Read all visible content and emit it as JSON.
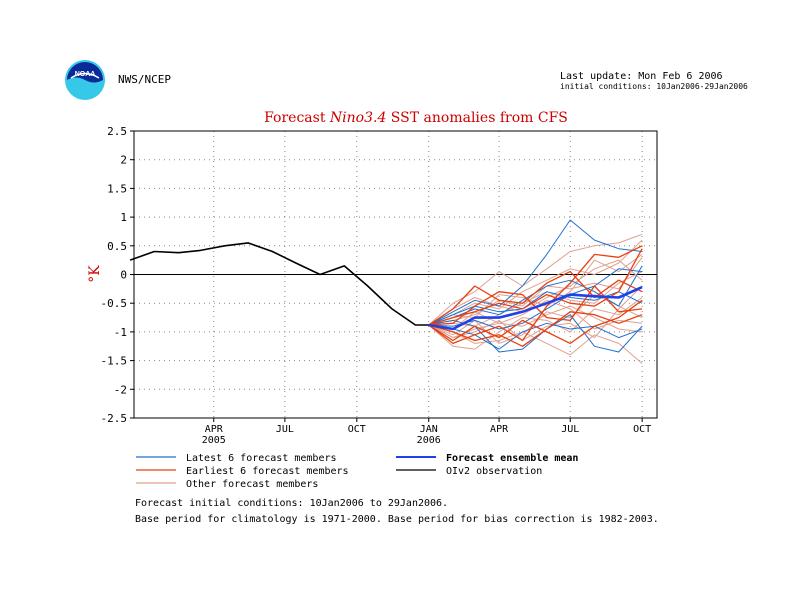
{
  "header": {
    "logo_text": "NOAA",
    "agency": "NWS/NCEP",
    "last_update": "Last update: Mon Feb 6 2006",
    "initial_conditions": "initial conditions: 10Jan2006-29Jan2006"
  },
  "notes": {
    "line1": "Forecast initial conditions: 10Jan2006 to 29Jan2006.",
    "line2": "Base period for climatology is 1971-2000. Base period for bias correction is 1982-2003."
  },
  "colors": {
    "title": "#cc0000",
    "latest": "#1f6fd0",
    "earliest": "#e84010",
    "other": "#e0a090",
    "mean": "#2040e8",
    "observation": "#000000",
    "grid": "#888888"
  },
  "chart_data": {
    "type": "line",
    "title_parts": [
      "Forecast ",
      "Nino3.4",
      " SST anomalies from CFS"
    ],
    "ylabel": "°K",
    "ylim": [
      -2.5,
      2.5
    ],
    "yticks": [
      "2.5",
      "2",
      "1.5",
      "1",
      "0.5",
      "0",
      "-0.5",
      "-1",
      "-1.5",
      "-2",
      "-2.5"
    ],
    "xlim": [
      "2004-12-20",
      "2006-10-20"
    ],
    "xticks": [
      {
        "date": "2005-04-01",
        "label": "APR",
        "sub": "2005"
      },
      {
        "date": "2005-07-01",
        "label": "JUL",
        "sub": ""
      },
      {
        "date": "2005-10-01",
        "label": "OCT",
        "sub": ""
      },
      {
        "date": "2006-01-01",
        "label": "JAN",
        "sub": "2006"
      },
      {
        "date": "2006-04-01",
        "label": "APR",
        "sub": ""
      },
      {
        "date": "2006-07-01",
        "label": "JUL",
        "sub": ""
      },
      {
        "date": "2006-10-01",
        "label": "OCT",
        "sub": ""
      }
    ],
    "grid": true,
    "zero_line": true,
    "legend": [
      {
        "label": "Latest 6 forecast members",
        "series": "latest",
        "bold": false
      },
      {
        "label": "Forecast ensemble mean",
        "series": "mean",
        "bold": true
      },
      {
        "label": "Earliest 6 forecast members",
        "series": "earliest",
        "bold": false
      },
      {
        "label": "OIv2 observation",
        "series": "observation",
        "bold": false
      },
      {
        "label": "Other forecast members",
        "series": "other",
        "bold": false
      }
    ],
    "forecast_months": [
      "2006-01-01",
      "2006-02-01",
      "2006-03-01",
      "2006-04-01",
      "2006-05-01",
      "2006-06-01",
      "2006-07-01",
      "2006-08-01",
      "2006-09-01",
      "2006-10-01"
    ],
    "observation": {
      "x": [
        "2004-12-15",
        "2005-01-15",
        "2005-02-15",
        "2005-03-15",
        "2005-04-15",
        "2005-05-15",
        "2005-06-15",
        "2005-07-15",
        "2005-08-15",
        "2005-09-15",
        "2005-10-15",
        "2005-11-15",
        "2005-12-15",
        "2006-01-01"
      ],
      "y": [
        0.25,
        0.4,
        0.38,
        0.42,
        0.5,
        0.55,
        0.4,
        0.2,
        0.0,
        0.15,
        -0.2,
        -0.6,
        -0.88,
        -0.88
      ]
    },
    "mean": [
      -0.88,
      -0.95,
      -0.75,
      -0.75,
      -0.65,
      -0.5,
      -0.35,
      -0.38,
      -0.4,
      -0.22
    ],
    "latest": [
      [
        -0.88,
        -0.65,
        -0.45,
        -0.55,
        -0.2,
        0.35,
        0.95,
        0.6,
        0.45,
        0.4
      ],
      [
        -0.88,
        -0.8,
        -0.9,
        -1.35,
        -1.3,
        -0.95,
        -0.7,
        -1.25,
        -1.35,
        -0.9
      ],
      [
        -0.88,
        -0.75,
        -0.6,
        -0.7,
        -0.45,
        -0.2,
        -0.1,
        -0.3,
        -0.55,
        0.15
      ],
      [
        -0.88,
        -0.95,
        -1.05,
        -1.3,
        -1.0,
        -0.85,
        -0.95,
        -0.9,
        -1.1,
        -0.95
      ],
      [
        -0.88,
        -0.7,
        -0.55,
        -0.65,
        -0.6,
        -0.3,
        -0.4,
        -0.45,
        -0.3,
        -0.5
      ],
      [
        -0.88,
        -0.9,
        -0.8,
        -0.95,
        -0.85,
        -0.6,
        -0.35,
        -0.2,
        0.1,
        0.05
      ]
    ],
    "earliest": [
      [
        -0.88,
        -1.2,
        -1.05,
        -0.9,
        -1.15,
        -0.55,
        -0.15,
        0.35,
        0.3,
        0.5
      ],
      [
        -0.88,
        -0.85,
        -0.55,
        -0.3,
        -0.35,
        -0.75,
        -0.8,
        -0.2,
        -0.65,
        -0.6
      ],
      [
        -0.88,
        -1.0,
        -1.15,
        -1.05,
        -1.25,
        -0.95,
        -0.65,
        -0.7,
        -0.85,
        -0.7
      ],
      [
        -0.88,
        -0.6,
        -0.2,
        -0.45,
        -0.5,
        -0.15,
        0.05,
        -0.4,
        -0.1,
        -0.3
      ],
      [
        -0.88,
        -1.15,
        -0.9,
        -1.1,
        -0.8,
        -1.0,
        -1.2,
        -0.9,
        -0.75,
        -0.45
      ],
      [
        -0.88,
        -0.75,
        -0.65,
        -0.5,
        -0.6,
        -0.35,
        -0.5,
        -0.55,
        -0.3,
        0.45
      ]
    ],
    "other": [
      [
        -0.88,
        -0.5,
        -0.3,
        0.05,
        -0.2,
        0.1,
        0.4,
        0.5,
        0.55,
        0.7
      ],
      [
        -0.88,
        -1.0,
        -1.2,
        -1.15,
        -1.0,
        -1.2,
        -1.4,
        -1.05,
        -1.2,
        -1.55
      ],
      [
        -0.88,
        -0.7,
        -0.5,
        -0.6,
        -0.3,
        -0.1,
        0.1,
        0.0,
        0.2,
        0.6
      ],
      [
        -0.88,
        -1.1,
        -0.95,
        -0.85,
        -0.9,
        -0.7,
        -0.55,
        -0.75,
        -0.95,
        -1.0
      ],
      [
        -0.88,
        -0.8,
        -0.7,
        -0.45,
        -0.55,
        -0.2,
        -0.25,
        -0.15,
        -0.25,
        0.3
      ],
      [
        -0.88,
        -0.95,
        -0.65,
        -0.85,
        -0.7,
        -0.45,
        -0.6,
        -0.95,
        -0.8,
        -0.85
      ],
      [
        -0.88,
        -0.6,
        -0.4,
        -0.55,
        -0.65,
        -0.4,
        -0.2,
        0.1,
        0.25,
        -0.1
      ],
      [
        -0.88,
        -1.25,
        -1.3,
        -1.0,
        -0.75,
        -0.8,
        -1.0,
        -0.6,
        -0.7,
        -0.4
      ],
      [
        -0.88,
        -0.85,
        -0.9,
        -0.7,
        -0.5,
        -0.3,
        -0.45,
        -0.5,
        -0.15,
        0.05
      ],
      [
        -0.88,
        -1.05,
        -0.8,
        -1.2,
        -1.05,
        -0.65,
        -0.75,
        -0.35,
        -0.55,
        -0.75
      ],
      [
        -0.88,
        -0.7,
        -0.75,
        -0.35,
        -0.4,
        -0.55,
        -0.3,
        0.25,
        0.05,
        0.35
      ],
      [
        -0.88,
        -1.1,
        -1.0,
        -0.8,
        -1.15,
        -0.9,
        -0.85,
        -1.1,
        -0.6,
        -0.2
      ]
    ]
  }
}
